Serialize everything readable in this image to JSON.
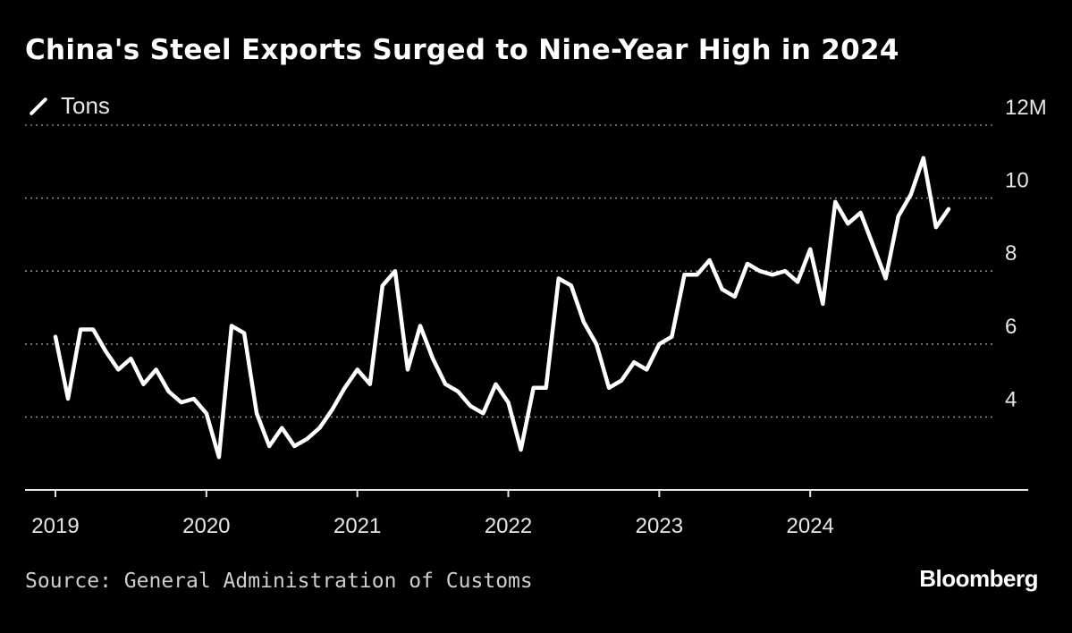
{
  "title": "China's Steel Exports Surged to Nine-Year High in 2024",
  "source": "Source: General Administration of Customs",
  "brand": "Bloomberg",
  "colors": {
    "background": "#000000",
    "line": "#ffffff",
    "grid": "#8a8a8a",
    "text": "#e6e6e6"
  },
  "chart_data": {
    "type": "line",
    "title": "China's Steel Exports Surged to Nine-Year High in 2024",
    "xlabel": "",
    "ylabel": "",
    "legend": {
      "placement": "top-left",
      "entries": [
        "Tons"
      ]
    },
    "ylim": [
      2,
      12
    ],
    "y_ticks": [
      4,
      6,
      8,
      10,
      12
    ],
    "y_tick_labels": [
      "4",
      "6",
      "8",
      "10",
      "12M"
    ],
    "x_ticks": [
      "2019",
      "2020",
      "2021",
      "2022",
      "2023",
      "2024"
    ],
    "grid": "horizontal dotted",
    "series": [
      {
        "name": "Tons",
        "x": [
          "2019-01",
          "2019-02",
          "2019-03",
          "2019-04",
          "2019-05",
          "2019-06",
          "2019-07",
          "2019-08",
          "2019-09",
          "2019-10",
          "2019-11",
          "2019-12",
          "2020-01",
          "2020-02",
          "2020-03",
          "2020-04",
          "2020-05",
          "2020-06",
          "2020-07",
          "2020-08",
          "2020-09",
          "2020-10",
          "2020-11",
          "2020-12",
          "2021-01",
          "2021-02",
          "2021-03",
          "2021-04",
          "2021-05",
          "2021-06",
          "2021-07",
          "2021-08",
          "2021-09",
          "2021-10",
          "2021-11",
          "2021-12",
          "2022-01",
          "2022-02",
          "2022-03",
          "2022-04",
          "2022-05",
          "2022-06",
          "2022-07",
          "2022-08",
          "2022-09",
          "2022-10",
          "2022-11",
          "2022-12",
          "2023-01",
          "2023-02",
          "2023-03",
          "2023-04",
          "2023-05",
          "2023-06",
          "2023-07",
          "2023-08",
          "2023-09",
          "2023-10",
          "2023-11",
          "2023-12",
          "2024-01",
          "2024-02",
          "2024-03",
          "2024-04",
          "2024-05",
          "2024-06",
          "2024-07",
          "2024-08",
          "2024-09",
          "2024-10",
          "2024-11",
          "2024-12"
        ],
        "values": [
          6.2,
          4.5,
          6.4,
          6.4,
          5.8,
          5.3,
          5.6,
          4.9,
          5.3,
          4.7,
          4.4,
          4.5,
          4.1,
          2.9,
          6.5,
          6.3,
          4.1,
          3.2,
          3.7,
          3.2,
          3.4,
          3.7,
          4.2,
          4.8,
          5.3,
          4.9,
          7.6,
          8.0,
          5.3,
          6.5,
          5.6,
          4.9,
          4.7,
          4.3,
          4.1,
          4.9,
          4.4,
          3.1,
          4.8,
          4.8,
          7.8,
          7.6,
          6.6,
          6.0,
          4.8,
          5.0,
          5.5,
          5.3,
          6.0,
          6.2,
          7.9,
          7.9,
          8.3,
          7.5,
          7.3,
          8.2,
          8.0,
          7.9,
          8.0,
          7.7,
          8.6,
          7.1,
          9.9,
          9.3,
          9.6,
          8.7,
          7.8,
          9.5,
          10.1,
          11.1,
          9.2,
          9.7
        ]
      }
    ]
  }
}
